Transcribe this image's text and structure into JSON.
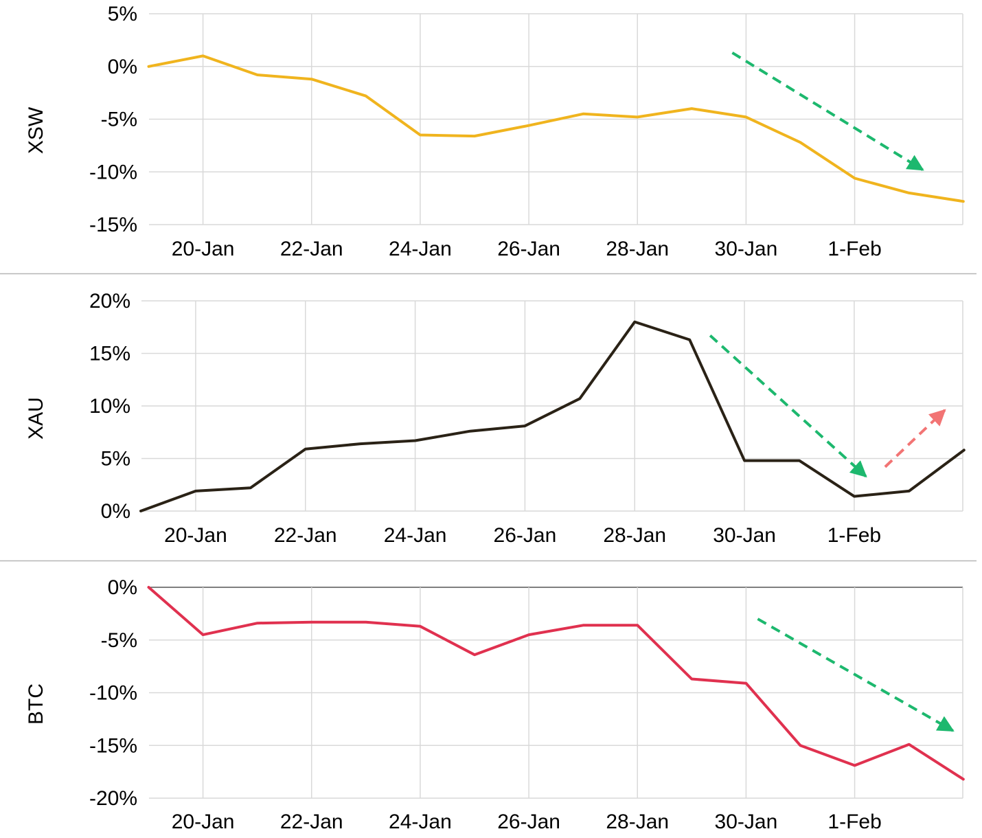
{
  "chart_data": [
    {
      "type": "line",
      "ylabel": "XSW",
      "x": [
        "19-Jan",
        "20-Jan",
        "21-Jan",
        "22-Jan",
        "23-Jan",
        "24-Jan",
        "25-Jan",
        "26-Jan",
        "27-Jan",
        "28-Jan",
        "29-Jan",
        "30-Jan",
        "31-Jan",
        "1-Feb",
        "2-Feb",
        "3-Feb"
      ],
      "x_tick_labels": [
        "20-Jan",
        "22-Jan",
        "24-Jan",
        "26-Jan",
        "28-Jan",
        "30-Jan",
        "1-Feb"
      ],
      "ylim": [
        -15,
        5
      ],
      "y_ticks": [
        5,
        0,
        -5,
        -10,
        -15
      ],
      "y_tick_labels": [
        "5%",
        "0%",
        "-5%",
        "-10%",
        "-15%"
      ],
      "grid": true,
      "series": [
        {
          "color": "#f0b41e",
          "values": [
            0,
            1.0,
            -0.8,
            -1.2,
            -2.8,
            -6.5,
            -6.6,
            -5.6,
            -4.5,
            -4.8,
            -4.0,
            -4.8,
            -7.2,
            -10.6,
            -12.0,
            -12.8
          ]
        }
      ],
      "annotations": [
        {
          "type": "arrow",
          "style": "dashed",
          "color": "#1db86e",
          "from": [
            "30-Jan",
            1.3
          ],
          "to": [
            "2-Feb",
            -9.8
          ]
        }
      ]
    },
    {
      "type": "line",
      "ylabel": "XAU",
      "x": [
        "19-Jan",
        "20-Jan",
        "21-Jan",
        "22-Jan",
        "23-Jan",
        "24-Jan",
        "25-Jan",
        "26-Jan",
        "27-Jan",
        "28-Jan",
        "29-Jan",
        "30-Jan",
        "31-Jan",
        "1-Feb",
        "2-Feb",
        "3-Feb"
      ],
      "x_tick_labels": [
        "20-Jan",
        "22-Jan",
        "24-Jan",
        "26-Jan",
        "28-Jan",
        "30-Jan",
        "1-Feb"
      ],
      "ylim": [
        0,
        20
      ],
      "y_ticks": [
        20,
        15,
        10,
        5,
        0
      ],
      "y_tick_labels": [
        "20%",
        "15%",
        "10%",
        "5%",
        "0%"
      ],
      "grid": true,
      "series": [
        {
          "color": "#2a2216",
          "values": [
            0,
            1.9,
            2.2,
            5.9,
            6.4,
            6.7,
            7.6,
            8.1,
            10.7,
            18.0,
            16.3,
            4.8,
            4.8,
            1.4,
            1.9,
            5.8
          ]
        }
      ],
      "annotations": [
        {
          "type": "arrow",
          "style": "dashed",
          "color": "#1db86e",
          "from": [
            "29-Jan",
            16.7
          ],
          "to": [
            "1-Feb",
            3.3
          ]
        },
        {
          "type": "arrow",
          "style": "dashed",
          "color": "#f27474",
          "from": [
            "1-Feb",
            4.2
          ],
          "to": [
            "2-Feb",
            9.6
          ]
        }
      ]
    },
    {
      "type": "line",
      "ylabel": "BTC",
      "x": [
        "19-Jan",
        "20-Jan",
        "21-Jan",
        "22-Jan",
        "23-Jan",
        "24-Jan",
        "25-Jan",
        "26-Jan",
        "27-Jan",
        "28-Jan",
        "29-Jan",
        "30-Jan",
        "31-Jan",
        "1-Feb",
        "2-Feb",
        "3-Feb"
      ],
      "x_tick_labels": [
        "20-Jan",
        "22-Jan",
        "24-Jan",
        "26-Jan",
        "28-Jan",
        "30-Jan",
        "1-Feb"
      ],
      "ylim": [
        -20,
        0
      ],
      "y_ticks": [
        0,
        -5,
        -10,
        -15,
        -20
      ],
      "y_tick_labels": [
        "0%",
        "-5%",
        "-10%",
        "-15%",
        "-20%"
      ],
      "grid": true,
      "series": [
        {
          "color": "#e0314f",
          "values": [
            0,
            -4.5,
            -3.4,
            -3.3,
            -3.3,
            -3.7,
            -6.4,
            -4.5,
            -3.6,
            -3.6,
            -8.7,
            -9.1,
            -15.0,
            -16.9,
            -14.9,
            -18.2
          ]
        }
      ],
      "annotations": [
        {
          "type": "arrow",
          "style": "dashed",
          "color": "#1db86e",
          "from": [
            "30-Jan",
            -3.0
          ],
          "to": [
            "2-Feb",
            -13.6
          ]
        }
      ]
    }
  ]
}
